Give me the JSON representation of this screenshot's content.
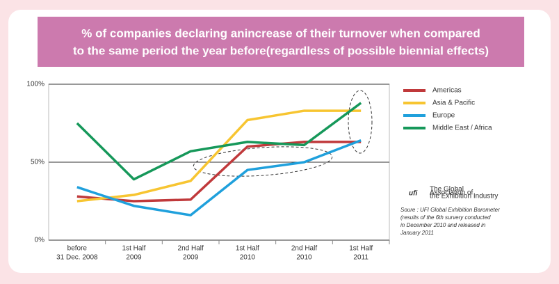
{
  "chart_data": {
    "type": "line",
    "title": [
      "% of companies declaring anincrease of their turnover when compared",
      "to the same period the year before(regardless of possible biennial effects)"
    ],
    "categories": [
      [
        "before",
        "31 Dec. 2008"
      ],
      [
        "1st Half",
        "2009"
      ],
      [
        "2nd Half",
        "2009"
      ],
      [
        "1st Half",
        "2010"
      ],
      [
        "2nd Half",
        "2010"
      ],
      [
        "1st Half",
        "2011"
      ]
    ],
    "series": [
      {
        "name": "Americas",
        "color": "#c0393b",
        "values": [
          28,
          25,
          26,
          60,
          63,
          63
        ]
      },
      {
        "name": "Asia & Pacific",
        "color": "#f7c531",
        "values": [
          25,
          29,
          38,
          77,
          83,
          83
        ]
      },
      {
        "name": "Europe",
        "color": "#1fa0dc",
        "values": [
          34,
          22,
          16,
          45,
          50,
          64
        ]
      },
      {
        "name": "Middle East / Africa",
        "color": "#16985a",
        "values": [
          75,
          39,
          57,
          63,
          61,
          88
        ]
      }
    ],
    "ylim": [
      0,
      100
    ],
    "yticks": [
      {
        "value": 0,
        "label": "0%"
      },
      {
        "value": 50,
        "label": "50%"
      },
      {
        "value": 100,
        "label": "100%"
      }
    ],
    "grid": true,
    "logo": {
      "name": "ufi",
      "tagline": [
        "The Global",
        "Association of",
        "the Exhibition Industry"
      ]
    },
    "source": [
      "Soure : UFI Global Exhibition Barometer",
      "(results of the 6th survery conducted",
      "in December 2010 and released in",
      "January 2011"
    ]
  }
}
